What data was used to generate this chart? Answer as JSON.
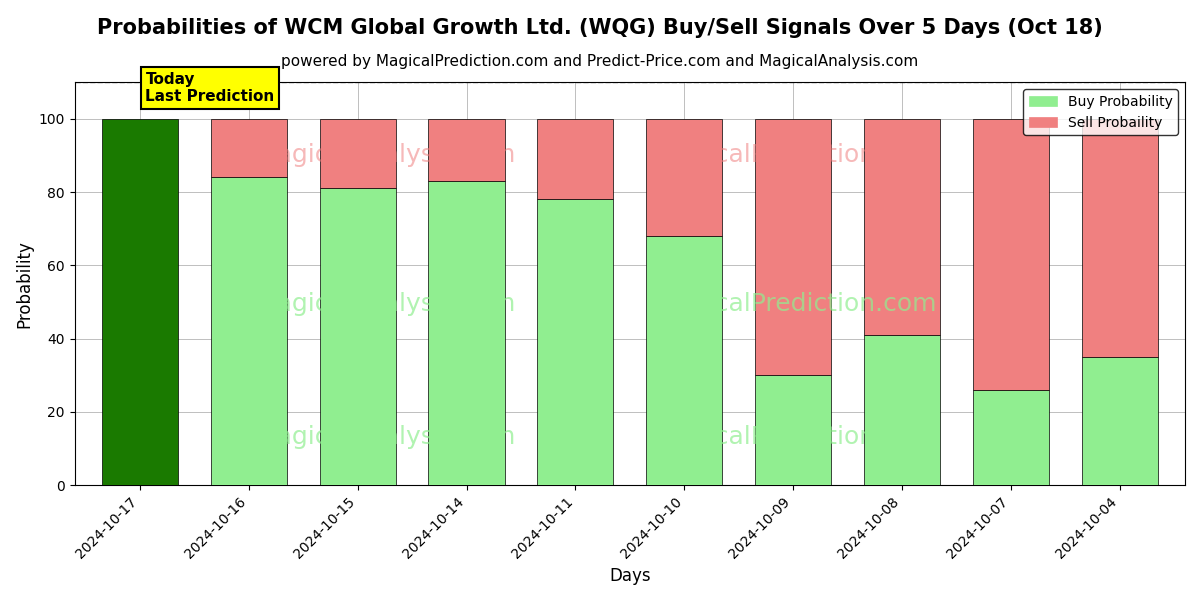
{
  "title": "Probabilities of WCM Global Growth Ltd. (WQG) Buy/Sell Signals Over 5 Days (Oct 18)",
  "subtitle": "powered by MagicalPrediction.com and Predict-Price.com and MagicalAnalysis.com",
  "xlabel": "Days",
  "ylabel": "Probability",
  "categories": [
    "2024-10-17",
    "2024-10-16",
    "2024-10-15",
    "2024-10-14",
    "2024-10-11",
    "2024-10-10",
    "2024-10-09",
    "2024-10-08",
    "2024-10-07",
    "2024-10-04"
  ],
  "buy_values": [
    100,
    84,
    81,
    83,
    78,
    68,
    30,
    41,
    26,
    35
  ],
  "sell_values": [
    0,
    16,
    19,
    17,
    22,
    32,
    70,
    59,
    74,
    65
  ],
  "today_bar_color": "#1a7a00",
  "buy_bar_color": "#90ee90",
  "sell_bar_color": "#f08080",
  "today_label_bg": "#ffff00",
  "today_label_text": "Today\nLast Prediction",
  "legend_buy": "Buy Probability",
  "legend_sell": "Sell Probaility",
  "ylim": [
    0,
    110
  ],
  "dashed_line_y": 110,
  "title_fontsize": 15,
  "subtitle_fontsize": 11
}
